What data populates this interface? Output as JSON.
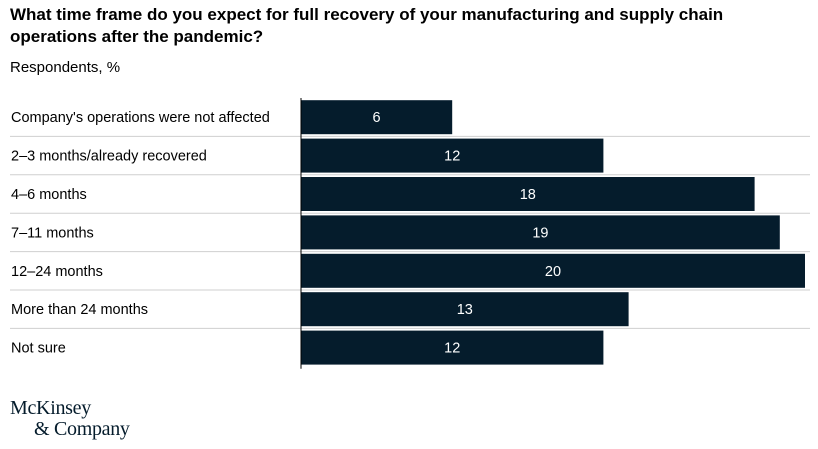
{
  "chart_data": {
    "type": "bar",
    "orientation": "horizontal",
    "title": "What time frame do you expect for full recovery of your manufacturing and supply chain operations after the pandemic?",
    "subtitle": "Respondents, %",
    "categories": [
      "Company's operations were not affected",
      "2–3 months/already recovered",
      "4–6 months",
      "7–11 months",
      "12–24 months",
      "More than 24 months",
      "Not sure"
    ],
    "values": [
      6,
      12,
      18,
      19,
      20,
      13,
      12
    ],
    "xlim": [
      0,
      20
    ],
    "bar_color": "#051c2c",
    "label_color": "#ffffff",
    "grid": false
  },
  "footer": {
    "logo_line1": "McKinsey",
    "logo_line2": "& Company"
  }
}
